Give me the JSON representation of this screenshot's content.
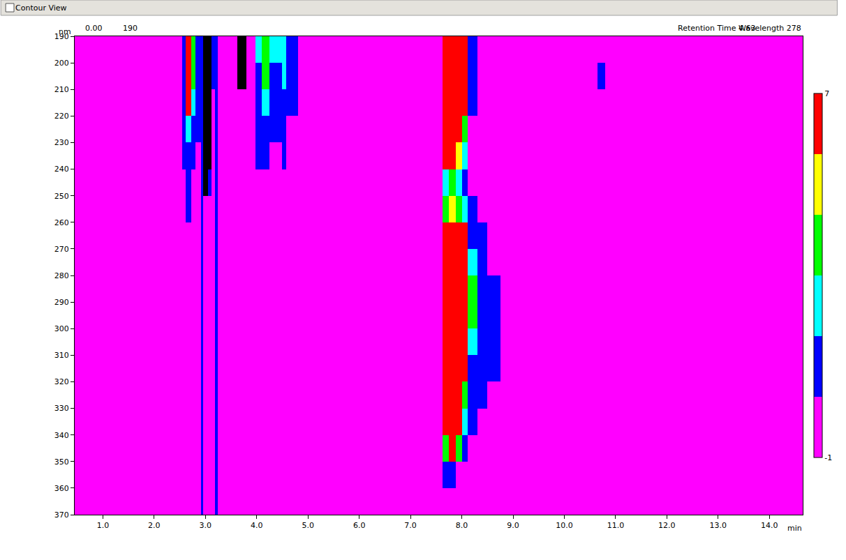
{
  "chart_data": {
    "type": "heatmap",
    "title": "Contour View",
    "xlabel": "min",
    "ylabel": "nm",
    "annotations": [
      "0.00",
      "190",
      "Retention Time 4.63",
      "Wavelength 278"
    ],
    "x": [
      0.45,
      2.55,
      2.62,
      2.72,
      2.8,
      2.92,
      2.96,
      3.05,
      3.12,
      3.18,
      3.24,
      3.62,
      3.8,
      3.98,
      4.1,
      4.25,
      4.42,
      4.5,
      4.58,
      4.8,
      7.62,
      7.75,
      7.88,
      8.0,
      8.12,
      8.3,
      8.5,
      8.75,
      10.65,
      10.8,
      14.65
    ],
    "y": [
      190,
      200,
      210,
      220,
      230,
      240,
      250,
      260,
      270,
      280,
      290,
      300,
      310,
      320,
      330,
      340,
      350,
      360,
      370
    ],
    "cells": [
      [
        -1,
        1,
        6.5,
        3.5,
        1,
        1,
        8,
        8,
        1,
        1,
        -1,
        8,
        -1,
        2.5,
        3.5,
        2.5,
        2.5,
        2.5,
        1,
        -1,
        6.5,
        6.5,
        6.5,
        6.5,
        1,
        -1,
        -1,
        -1,
        -1,
        -1
      ],
      [
        -1,
        1,
        6.5,
        3.5,
        1,
        1,
        8,
        8,
        1,
        1,
        -1,
        8,
        -1,
        1,
        3.5,
        1,
        1,
        2.5,
        1,
        -1,
        6.5,
        6.5,
        6.5,
        6.5,
        1,
        -1,
        -1,
        -1,
        1,
        -1
      ],
      [
        -1,
        1,
        6.5,
        2.5,
        1,
        1,
        8,
        8,
        -1,
        1,
        -1,
        -1,
        -1,
        1,
        2.5,
        1,
        1,
        1,
        1,
        -1,
        6.5,
        6.5,
        6.5,
        6.5,
        1,
        -1,
        -1,
        -1,
        -1,
        -1
      ],
      [
        -1,
        1,
        2.5,
        1,
        1,
        1,
        8,
        8,
        -1,
        1,
        -1,
        -1,
        -1,
        1,
        1,
        1,
        1,
        1,
        -1,
        -1,
        6.5,
        6.5,
        6.5,
        3.5,
        -1,
        -1,
        -1,
        -1,
        -1,
        -1
      ],
      [
        -1,
        1,
        1,
        1,
        -1,
        1,
        8,
        8,
        -1,
        1,
        -1,
        -1,
        -1,
        1,
        1,
        -1,
        -1,
        1,
        -1,
        -1,
        6.5,
        6.5,
        5,
        2.5,
        -1,
        -1,
        -1,
        -1,
        -1,
        -1
      ],
      [
        -1,
        -1,
        1,
        -1,
        -1,
        1,
        8,
        1,
        -1,
        1,
        -1,
        -1,
        -1,
        -1,
        -1,
        -1,
        -1,
        -1,
        -1,
        -1,
        2.5,
        3.5,
        2.5,
        1,
        -1,
        -1,
        -1,
        -1,
        -1,
        -1
      ],
      [
        -1,
        -1,
        1,
        -1,
        -1,
        1,
        -1,
        -1,
        -1,
        1,
        -1,
        -1,
        -1,
        -1,
        -1,
        -1,
        -1,
        -1,
        -1,
        -1,
        3.5,
        5,
        3.5,
        2.5,
        1,
        -1,
        -1,
        -1,
        -1,
        -1
      ],
      [
        -1,
        -1,
        -1,
        -1,
        -1,
        1,
        -1,
        -1,
        -1,
        1,
        -1,
        -1,
        -1,
        -1,
        -1,
        -1,
        -1,
        -1,
        -1,
        -1,
        6.5,
        6.5,
        6.5,
        6.5,
        1,
        1,
        -1,
        -1,
        -1,
        -1
      ],
      [
        -1,
        -1,
        -1,
        -1,
        -1,
        1,
        -1,
        -1,
        -1,
        1,
        -1,
        -1,
        -1,
        -1,
        -1,
        -1,
        -1,
        -1,
        -1,
        -1,
        6.5,
        6.5,
        6.5,
        6.5,
        2.5,
        1,
        -1,
        -1,
        -1,
        -1
      ],
      [
        -1,
        -1,
        -1,
        -1,
        -1,
        1,
        -1,
        -1,
        -1,
        1,
        -1,
        -1,
        -1,
        -1,
        -1,
        -1,
        -1,
        -1,
        -1,
        -1,
        6.5,
        6.5,
        6.5,
        6.5,
        3.5,
        1,
        1,
        -1,
        -1,
        -1
      ],
      [
        -1,
        -1,
        -1,
        -1,
        -1,
        1,
        -1,
        -1,
        -1,
        1,
        -1,
        -1,
        -1,
        -1,
        -1,
        -1,
        -1,
        -1,
        -1,
        -1,
        6.5,
        6.5,
        6.5,
        6.5,
        3.5,
        1,
        1,
        -1,
        -1,
        -1
      ],
      [
        -1,
        -1,
        -1,
        -1,
        -1,
        1,
        -1,
        -1,
        -1,
        1,
        -1,
        -1,
        -1,
        -1,
        -1,
        -1,
        -1,
        -1,
        -1,
        -1,
        6.5,
        6.5,
        6.5,
        6.5,
        2.5,
        1,
        1,
        -1,
        -1,
        -1
      ],
      [
        -1,
        -1,
        -1,
        -1,
        -1,
        1,
        -1,
        -1,
        -1,
        1,
        -1,
        -1,
        -1,
        -1,
        -1,
        -1,
        -1,
        -1,
        -1,
        -1,
        6.5,
        6.5,
        6.5,
        6.5,
        1,
        1,
        1,
        -1,
        -1,
        -1
      ],
      [
        -1,
        -1,
        -1,
        -1,
        -1,
        1,
        -1,
        -1,
        -1,
        1,
        -1,
        -1,
        -1,
        -1,
        -1,
        -1,
        -1,
        -1,
        -1,
        -1,
        6.5,
        6.5,
        6.5,
        3.5,
        1,
        1,
        -1,
        -1,
        -1,
        -1
      ],
      [
        -1,
        -1,
        -1,
        -1,
        -1,
        1,
        -1,
        -1,
        -1,
        1,
        -1,
        -1,
        -1,
        -1,
        -1,
        -1,
        -1,
        -1,
        -1,
        -1,
        6.5,
        6.5,
        6.5,
        2.5,
        1,
        -1,
        -1,
        -1,
        -1,
        -1
      ],
      [
        -1,
        -1,
        -1,
        -1,
        -1,
        1,
        -1,
        -1,
        -1,
        1,
        -1,
        -1,
        -1,
        -1,
        -1,
        -1,
        -1,
        -1,
        -1,
        -1,
        3.5,
        6.5,
        3.5,
        1,
        -1,
        -1,
        -1,
        -1,
        -1,
        -1
      ],
      [
        -1,
        -1,
        -1,
        -1,
        -1,
        1,
        -1,
        -1,
        -1,
        1,
        -1,
        -1,
        -1,
        -1,
        -1,
        -1,
        -1,
        -1,
        -1,
        -1,
        1,
        1,
        -1,
        -1,
        -1,
        -1,
        -1,
        -1,
        -1,
        -1
      ],
      [
        -1,
        -1,
        -1,
        -1,
        -1,
        1,
        -1,
        -1,
        -1,
        1,
        -1,
        -1,
        -1,
        -1,
        -1,
        -1,
        -1,
        -1,
        -1,
        -1,
        -1,
        -1,
        -1,
        -1,
        -1,
        -1,
        -1,
        -1,
        -1,
        -1
      ]
    ],
    "color_range": [
      -1,
      7
    ],
    "color_ticks": [
      -1,
      7
    ],
    "colors": [
      "#ff00ff",
      "#0000ff",
      "#00ffff",
      "#00ff00",
      "#ffff00",
      "#ff0000"
    ],
    "xlim": [
      0.45,
      14.65
    ],
    "xticks": [
      {
        "value": 1,
        "label": "1.0"
      },
      {
        "value": 2,
        "label": "2.0"
      },
      {
        "value": 3,
        "label": "3.0"
      },
      {
        "value": 4,
        "label": "4.0"
      },
      {
        "value": 5,
        "label": "5.0"
      },
      {
        "value": 6,
        "label": "6.0"
      },
      {
        "value": 7,
        "label": "7.0"
      },
      {
        "value": 8,
        "label": "8.0"
      },
      {
        "value": 9,
        "label": "9.0"
      },
      {
        "value": 10,
        "label": "10.0"
      },
      {
        "value": 11,
        "label": "11.0"
      },
      {
        "value": 12,
        "label": "12.0"
      },
      {
        "value": 13,
        "label": "13.0"
      },
      {
        "value": 14,
        "label": "14.0"
      }
    ],
    "ylim": [
      370,
      190
    ],
    "yticks": [
      190,
      200,
      210,
      220,
      230,
      240,
      250,
      260,
      270,
      280,
      290,
      300,
      310,
      320,
      330,
      340,
      350,
      360,
      370
    ],
    "grid": false
  }
}
